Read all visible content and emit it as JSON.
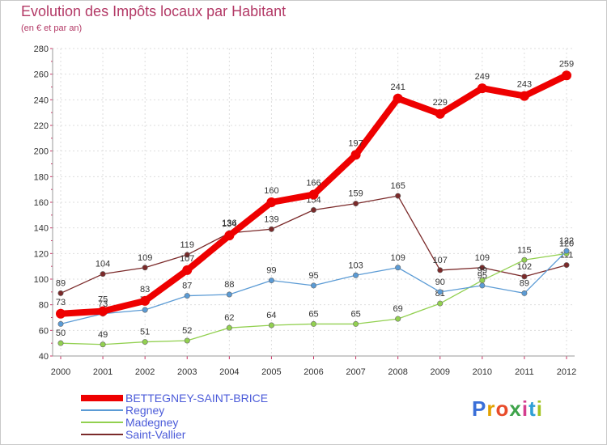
{
  "title": "Evolution des Impôts locaux par Habitant",
  "subtitle": "(en € et par an)",
  "logo_text": "Proxiti",
  "chart_data": {
    "type": "line",
    "title": "Evolution des Impôts locaux par Habitant",
    "subtitle": "(en € et par an)",
    "xlabel": "",
    "ylabel": "",
    "x": [
      "2000",
      "2001",
      "2002",
      "2003",
      "2004",
      "2005",
      "2006",
      "2007",
      "2008",
      "2009",
      "2010",
      "2011",
      "2012"
    ],
    "ylim": [
      40,
      280
    ],
    "yticks": [
      "40",
      "60",
      "80",
      "100",
      "120",
      "140",
      "160",
      "180",
      "200",
      "220",
      "240",
      "260",
      "280"
    ],
    "grid": true,
    "legend_position": "bottom-left",
    "series": [
      {
        "name": "BETTEGNEY-SAINT-BRICE",
        "color": "#ee0000",
        "values": [
          73,
          75,
          83,
          107,
          134,
          160,
          166,
          197,
          241,
          229,
          249,
          243,
          259
        ],
        "labels": [
          "73",
          "75",
          "83",
          "107",
          "134",
          "160",
          "166",
          "197",
          "241",
          "229",
          "249",
          "243",
          "259"
        ]
      },
      {
        "name": "Regney",
        "color": "#5b9bd5",
        "values": [
          65,
          73,
          76,
          87,
          88,
          99,
          95,
          103,
          109,
          90,
          95,
          89,
          122
        ],
        "labels": [
          "65",
          "73",
          "76",
          "87",
          "88",
          "99",
          "95",
          "103",
          "109",
          "90",
          "95",
          "89",
          "122"
        ]
      },
      {
        "name": "Madegney",
        "color": "#92d050",
        "values": [
          50,
          49,
          51,
          52,
          62,
          64,
          65,
          65,
          69,
          81,
          99,
          115,
          120
        ],
        "labels": [
          "50",
          "49",
          "51",
          "52",
          "62",
          "64",
          "65",
          "65",
          "69",
          "81",
          "99",
          "115",
          "120"
        ]
      },
      {
        "name": "Saint-Vallier",
        "color": "#7b2a2a",
        "values": [
          89,
          104,
          109,
          119,
          136,
          139,
          154,
          159,
          165,
          107,
          109,
          102,
          111
        ],
        "labels": [
          "89",
          "104",
          "109",
          "119",
          "136",
          "139",
          "154",
          "159",
          "165",
          "107",
          "109",
          "102",
          "111"
        ]
      }
    ]
  }
}
